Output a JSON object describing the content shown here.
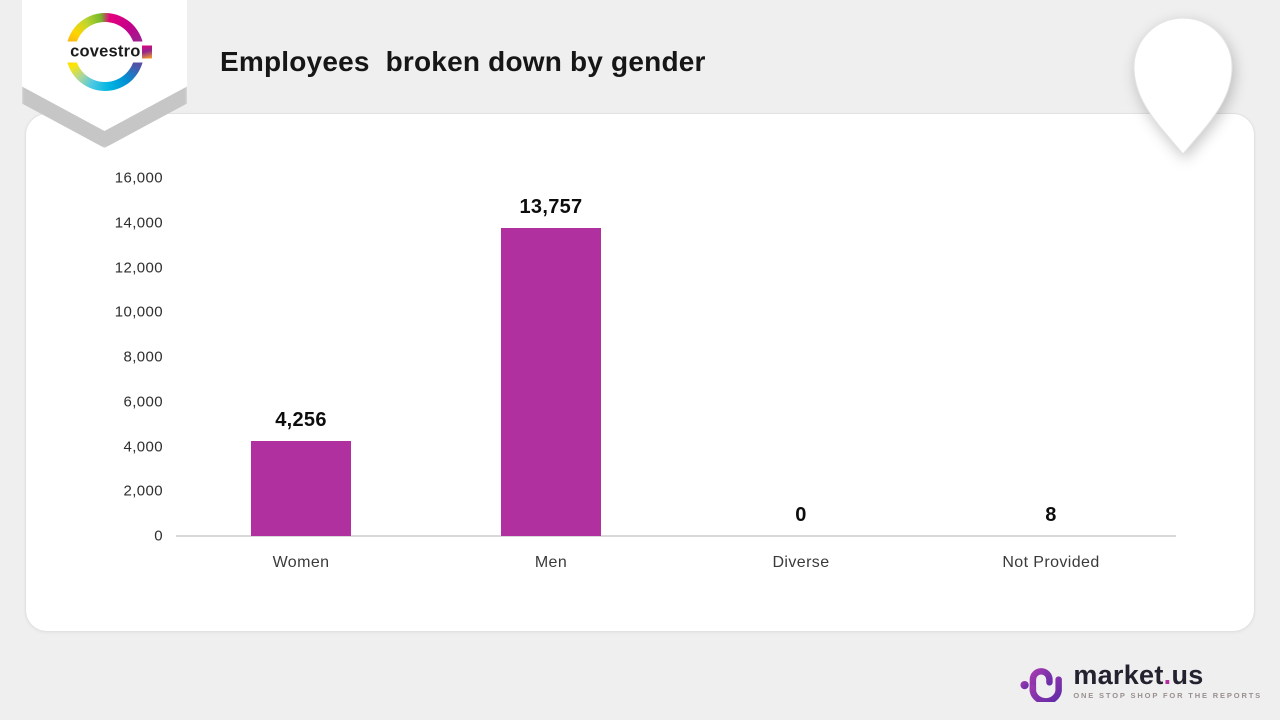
{
  "header": {
    "title": "Employees  broken down by gender",
    "logo_text": "covestro"
  },
  "chart_data": {
    "type": "bar",
    "title": "Employees broken down by gender",
    "categories": [
      "Women",
      "Men",
      "Diverse",
      "Not Provided"
    ],
    "values": [
      4256,
      13757,
      0,
      8
    ],
    "value_labels": [
      "4,256",
      "13,757",
      "0",
      "8"
    ],
    "xlabel": "",
    "ylabel": "",
    "ylim": [
      0,
      16000
    ],
    "ytick_values": [
      0,
      2000,
      4000,
      6000,
      8000,
      10000,
      12000,
      14000,
      16000
    ],
    "ytick_labels": [
      "0",
      "2,000",
      "4,000",
      "6,000",
      "8,000",
      "10,000",
      "12,000",
      "14,000",
      "16,000"
    ],
    "bar_color": "#B0309F",
    "grid": false,
    "legend": false,
    "axis_line_color": "#d9d9d9"
  },
  "footer": {
    "brand_main": "market",
    "brand_dot": ".",
    "brand_suffix": "us",
    "tagline": "ONE STOP SHOP FOR THE REPORTS"
  },
  "colors": {
    "background": "#efefef",
    "card": "#ffffff",
    "bar": "#B0309F",
    "title_text": "#161616",
    "brand_purple": "#7b2fbe"
  }
}
